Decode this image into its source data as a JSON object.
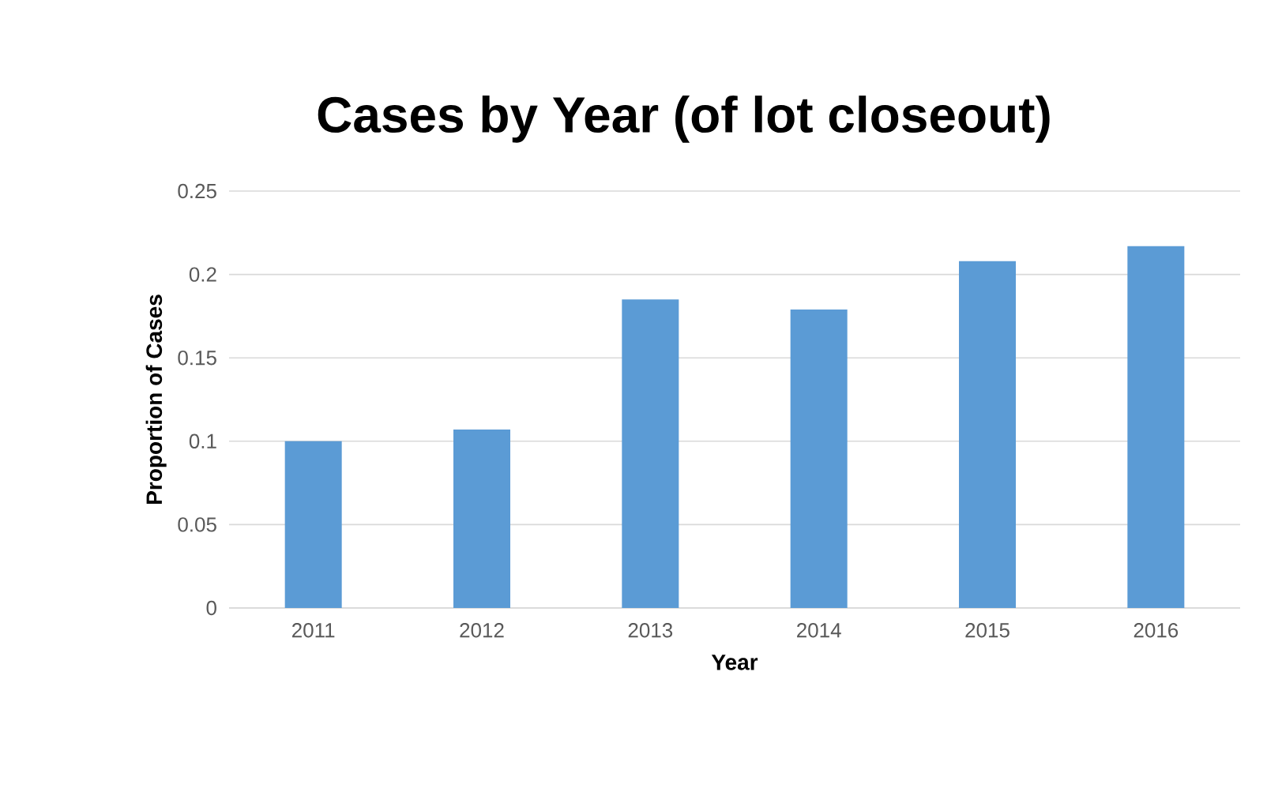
{
  "chart_data": {
    "type": "bar",
    "title": "Cases by Year (of lot closeout)",
    "xlabel": "Year",
    "ylabel": "Proportion of Cases",
    "categories": [
      "2011",
      "2012",
      "2013",
      "2014",
      "2015",
      "2016"
    ],
    "values": [
      0.1,
      0.107,
      0.185,
      0.179,
      0.208,
      0.217
    ],
    "color": "#5b9bd5",
    "ylim": [
      0,
      0.25
    ],
    "yticks": [
      0,
      0.05,
      0.1,
      0.15,
      0.2,
      0.25
    ],
    "grid": "y"
  }
}
